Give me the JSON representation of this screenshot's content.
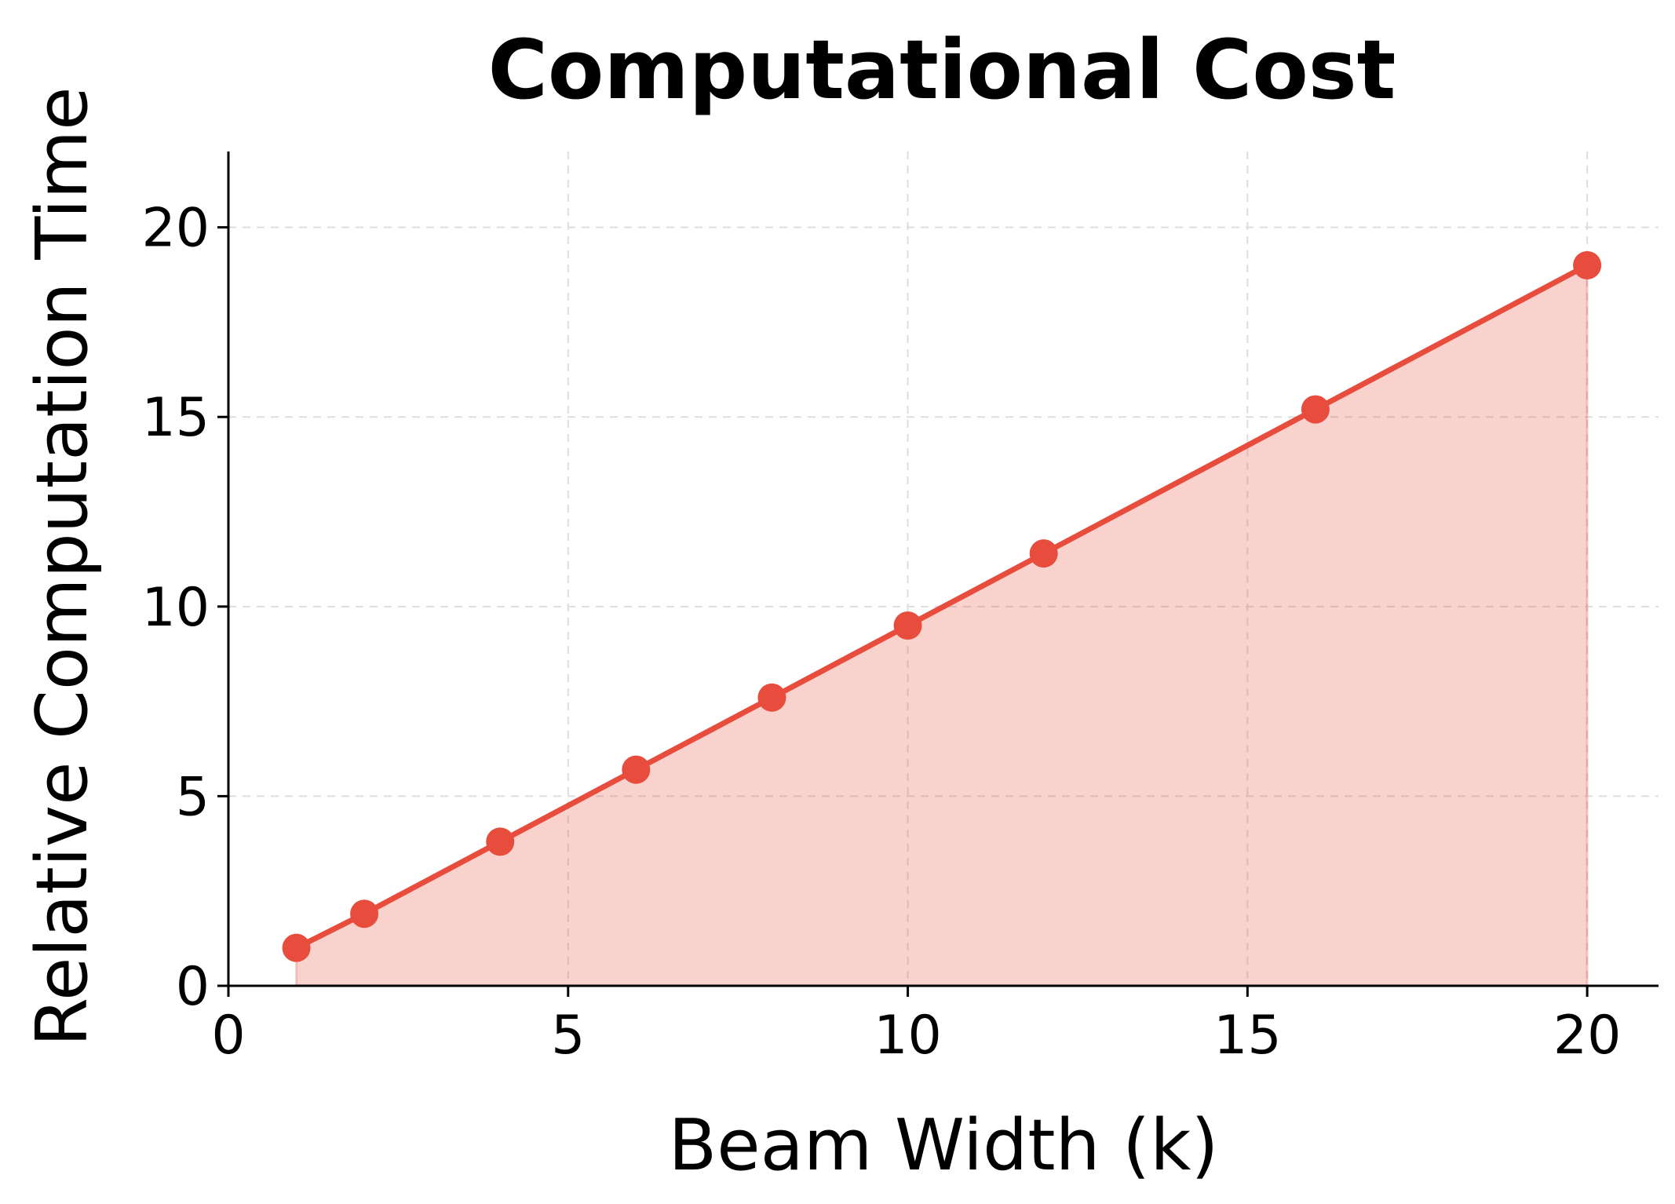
{
  "chart_data": {
    "type": "line",
    "title": "Computational Cost",
    "xlabel": "Beam Width (k)",
    "ylabel": "Relative Computation Time",
    "x": [
      1,
      2,
      4,
      6,
      8,
      10,
      12,
      16,
      20
    ],
    "series": [
      {
        "values": [
          1.0,
          1.9,
          3.8,
          5.7,
          7.6,
          9.5,
          11.4,
          15.2,
          19.0
        ],
        "color": "#E74C3C",
        "fill_under": true,
        "markers": true
      }
    ],
    "xlim": [
      0,
      21.05
    ],
    "ylim": [
      0,
      22
    ],
    "xticks": [
      0,
      5,
      10,
      15,
      20
    ],
    "yticks": [
      0,
      5,
      10,
      15,
      20
    ],
    "xtick_labels": [
      "0",
      "5",
      "10",
      "15",
      "20"
    ],
    "ytick_labels": [
      "0",
      "5",
      "10",
      "15",
      "20"
    ],
    "grid": true,
    "grid_style": "dashed"
  }
}
